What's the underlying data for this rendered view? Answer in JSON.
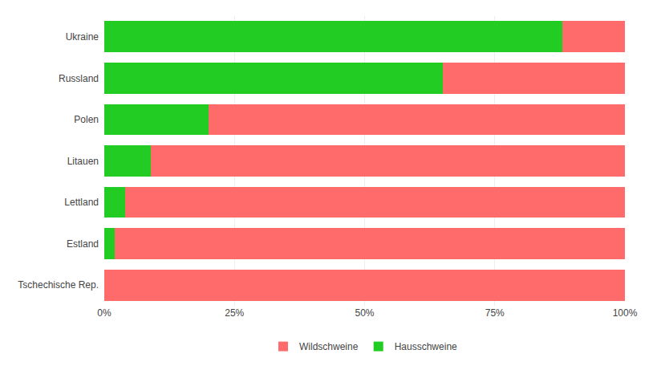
{
  "chart_data": {
    "type": "bar",
    "orientation": "horizontal",
    "stacked": true,
    "categories": [
      "Ukraine",
      "Russland",
      "Polen",
      "Litauen",
      "Lettland",
      "Estland",
      "Tschechische Rep."
    ],
    "series": [
      {
        "name": "Hausschweine",
        "color": "#22CC22",
        "values": [
          88,
          65,
          20,
          9,
          4,
          2,
          0
        ]
      },
      {
        "name": "Wildschweine",
        "color": "#FF6B6B",
        "values": [
          12,
          35,
          80,
          91,
          96,
          98,
          100
        ]
      }
    ],
    "xlim": [
      0,
      100
    ],
    "xticks": [
      {
        "value": 0,
        "label": "0%"
      },
      {
        "value": 25,
        "label": "25%"
      },
      {
        "value": 50,
        "label": "50%"
      },
      {
        "value": 75,
        "label": "75%"
      },
      {
        "value": 100,
        "label": "100%"
      }
    ],
    "grid": true,
    "legend": "bottom"
  }
}
